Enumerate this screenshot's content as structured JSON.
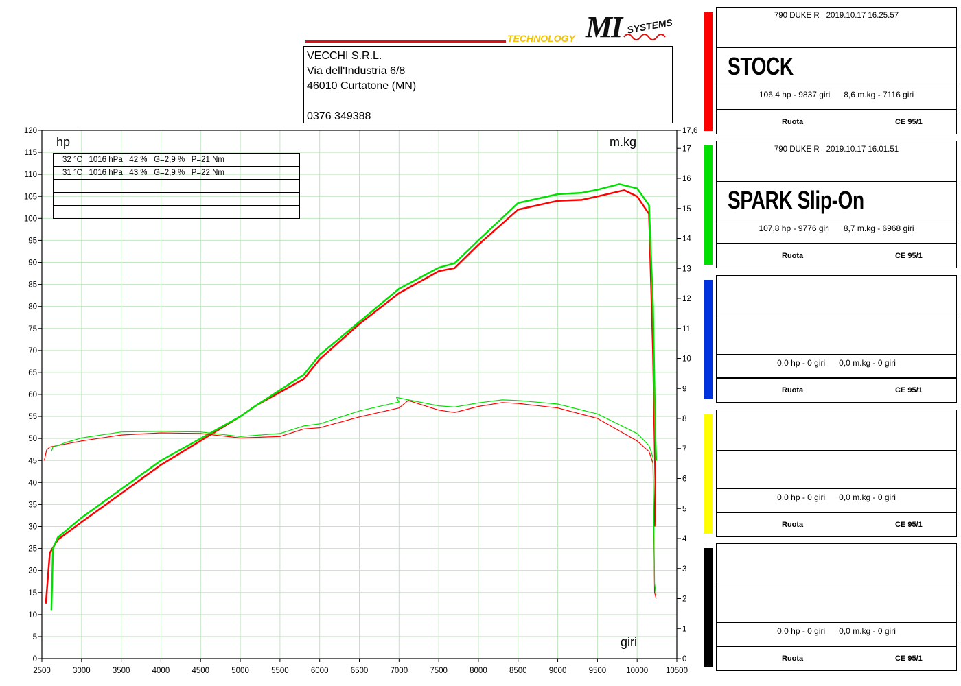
{
  "header": {
    "company_lines": [
      "VECCHI S.R.L.",
      "Via dell'Industria 6/8",
      "46010 Curtatone (MN)",
      "",
      "0376 349388"
    ],
    "logo_text": "TECHNOLOGY",
    "logo_brand": "MI",
    "logo_sub": "SYSTEMS"
  },
  "conditions": [
    "32 °C   1016 hPa   42 %   G=2,9 %   P=21 Nm",
    "31 °C   1016 hPa   43 %   G=2,9 %   P=22 Nm",
    "",
    "",
    ""
  ],
  "runs": [
    {
      "color": "#ff0000",
      "meta_model": "790 DUKE R",
      "meta_date": "2019.10.17 16.25.57",
      "name": "STOCK",
      "stats_power": "106,4 hp - 9837 giri",
      "stats_torque": "8,6 m.kg - 7116 giri",
      "foot_left": "Ruota",
      "foot_right": "CE 95/1"
    },
    {
      "color": "#00e000",
      "meta_model": "790 DUKE R",
      "meta_date": "2019.10.17 16.01.51",
      "name": "SPARK Slip-On",
      "stats_power": "107,8 hp - 9776 giri",
      "stats_torque": "8,7 m.kg - 6968 giri",
      "foot_left": "Ruota",
      "foot_right": "CE 95/1"
    },
    {
      "color": "#0033dd",
      "meta_model": "",
      "meta_date": "",
      "name": "",
      "stats_power": "0,0 hp - 0 giri",
      "stats_torque": "0,0 m.kg - 0 giri",
      "foot_left": "Ruota",
      "foot_right": "CE 95/1"
    },
    {
      "color": "#ffff00",
      "meta_model": "",
      "meta_date": "",
      "name": "",
      "stats_power": "0,0 hp - 0 giri",
      "stats_torque": "0,0 m.kg - 0 giri",
      "foot_left": "Ruota",
      "foot_right": "CE 95/1"
    },
    {
      "color": "#000000",
      "meta_model": "",
      "meta_date": "",
      "name": "",
      "stats_power": "0,0 hp - 0 giri",
      "stats_torque": "0,0 m.kg - 0 giri",
      "foot_left": "Ruota",
      "foot_right": "CE 95/1"
    }
  ],
  "chart_data": {
    "type": "line",
    "ylabel": "hp",
    "y2label": "m.kg",
    "xlabel": "giri",
    "xlim": [
      2500,
      10500
    ],
    "ylim": [
      0,
      120
    ],
    "y2lim": [
      0,
      17.6
    ],
    "x_ticks": [
      2500,
      3000,
      3500,
      4000,
      4500,
      5000,
      5500,
      6000,
      6500,
      7000,
      7500,
      8000,
      8500,
      9000,
      9500,
      10000,
      10500
    ],
    "y_ticks": [
      0,
      5,
      10,
      15,
      20,
      25,
      30,
      35,
      40,
      45,
      50,
      55,
      60,
      65,
      70,
      75,
      80,
      85,
      90,
      95,
      100,
      105,
      110,
      115,
      120
    ],
    "y2_ticks": [
      0,
      1,
      2,
      3,
      4,
      5,
      6,
      7,
      8,
      9,
      10,
      11,
      12,
      13,
      14,
      15,
      16,
      17,
      17.6
    ],
    "y2_tick_labels": [
      "0",
      "1",
      "2",
      "3",
      "4",
      "5",
      "6",
      "7",
      "8",
      "9",
      "10",
      "11",
      "12",
      "13",
      "14",
      "15",
      "16",
      "17",
      "17,6"
    ],
    "grid": true,
    "series": [
      {
        "name": "STOCK",
        "measure": "power",
        "axis": "left",
        "color": "#ff0000",
        "width": 2.5,
        "x": [
          2550,
          2600,
          2700,
          3000,
          3500,
          4000,
          4500,
          5000,
          5200,
          5500,
          5800,
          6000,
          6500,
          7000,
          7500,
          7700,
          8000,
          8500,
          9000,
          9300,
          9500,
          9837,
          10000,
          10150,
          10200,
          10230,
          10220
        ],
        "y": [
          12.5,
          24,
          27,
          31,
          37.5,
          44,
          49.5,
          55,
          57.5,
          60.5,
          63.5,
          68,
          76,
          83,
          88,
          88.7,
          94,
          102,
          104,
          104.2,
          105,
          106.4,
          105,
          101,
          70,
          40,
          30
        ]
      },
      {
        "name": "SPARK Slip-On",
        "measure": "power",
        "axis": "left",
        "color": "#00e000",
        "width": 2.5,
        "x": [
          2620,
          2640,
          2700,
          3000,
          3500,
          4000,
          4500,
          5000,
          5200,
          5500,
          5800,
          6000,
          6500,
          7000,
          7500,
          7700,
          8000,
          8500,
          9000,
          9300,
          9500,
          9776,
          10000,
          10150,
          10200,
          10230,
          10240
        ],
        "y": [
          11,
          25,
          27.5,
          32,
          38.5,
          45,
          50,
          55,
          57.5,
          61,
          64.5,
          69,
          76.5,
          84,
          88.8,
          89.8,
          95,
          103.5,
          105.5,
          105.8,
          106.5,
          107.8,
          106.8,
          103,
          80,
          50,
          45
        ]
      },
      {
        "name": "STOCK",
        "measure": "torque",
        "axis": "right",
        "color": "#ff0000",
        "width": 1.2,
        "x": [
          2530,
          2560,
          2600,
          2800,
          3000,
          3500,
          4000,
          4500,
          5000,
          5500,
          5800,
          6000,
          6500,
          7000,
          7116,
          7500,
          7700,
          8000,
          8300,
          8500,
          9000,
          9500,
          10000,
          10150,
          10200,
          10220,
          10240
        ],
        "y": [
          6.6,
          6.95,
          7.05,
          7.15,
          7.25,
          7.45,
          7.52,
          7.5,
          7.35,
          7.4,
          7.65,
          7.69,
          8.05,
          8.35,
          8.6,
          8.28,
          8.2,
          8.4,
          8.53,
          8.5,
          8.35,
          8.0,
          7.25,
          6.9,
          6.5,
          2.2,
          2.0
        ]
      },
      {
        "name": "SPARK Slip-On",
        "measure": "torque",
        "axis": "right",
        "color": "#00e000",
        "width": 1.2,
        "x": [
          2620,
          2640,
          2700,
          2800,
          3000,
          3500,
          4000,
          4500,
          5000,
          5500,
          5800,
          6000,
          6500,
          7000,
          6968,
          7500,
          7700,
          8000,
          8300,
          8500,
          9000,
          9500,
          10000,
          10150,
          10200,
          10220,
          10240
        ],
        "y": [
          6.9,
          7.05,
          7.1,
          7.2,
          7.35,
          7.55,
          7.57,
          7.55,
          7.4,
          7.5,
          7.75,
          7.82,
          8.25,
          8.55,
          8.7,
          8.42,
          8.38,
          8.52,
          8.62,
          8.6,
          8.48,
          8.15,
          7.5,
          7.1,
          6.7,
          2.5,
          2.1
        ]
      }
    ]
  }
}
